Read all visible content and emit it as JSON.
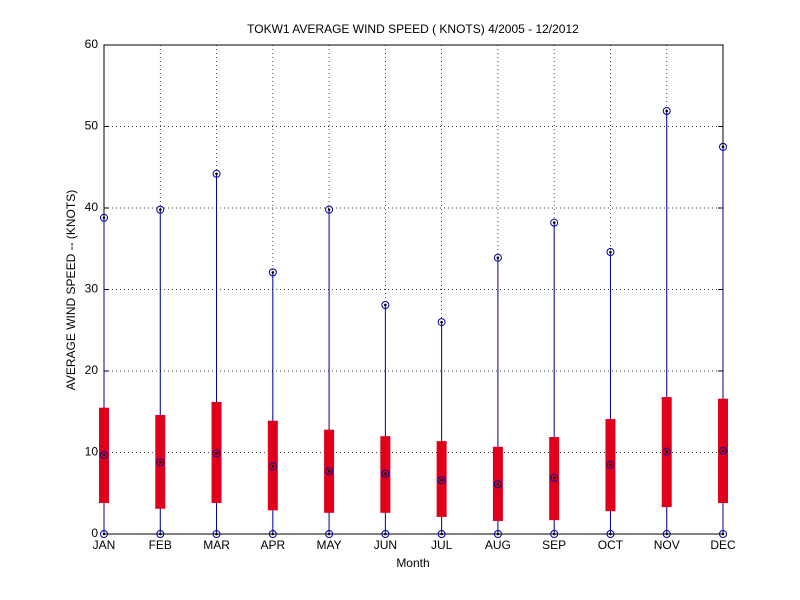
{
  "chart_data": {
    "type": "box",
    "title": "TOKW1  AVERAGE WIND SPEED ( KNOTS) 4/2005 - 12/2012",
    "x_label": "Month",
    "y_label": "AVERAGE WIND SPEED -- (KNOTS)",
    "categories": [
      "JAN",
      "FEB",
      "MAR",
      "APR",
      "MAY",
      "JUN",
      "JUL",
      "AUG",
      "SEP",
      "OCT",
      "NOV",
      "DEC"
    ],
    "min": [
      0,
      0,
      0,
      0,
      0,
      0,
      0,
      0,
      0,
      0,
      0,
      0
    ],
    "q1": [
      3.8,
      3.1,
      3.8,
      2.9,
      2.6,
      2.6,
      2.1,
      1.6,
      1.7,
      2.8,
      3.3,
      3.8
    ],
    "median": [
      9.7,
      8.8,
      9.9,
      8.3,
      7.7,
      7.4,
      6.6,
      6.1,
      6.9,
      8.5,
      10.1,
      10.2
    ],
    "q3": [
      15.5,
      14.6,
      16.2,
      13.9,
      12.8,
      12.0,
      11.4,
      10.7,
      11.9,
      14.1,
      16.8,
      16.6
    ],
    "max": [
      38.8,
      39.8,
      44.2,
      32.1,
      39.8,
      28.1,
      26.0,
      33.9,
      38.2,
      34.6,
      51.9,
      47.5
    ],
    "whisker_color": "#0000a0",
    "box_color": "#e0001c",
    "ylim": [
      0,
      60
    ],
    "yticks": [
      0,
      10,
      20,
      30,
      40,
      50,
      60
    ],
    "grid": true
  }
}
